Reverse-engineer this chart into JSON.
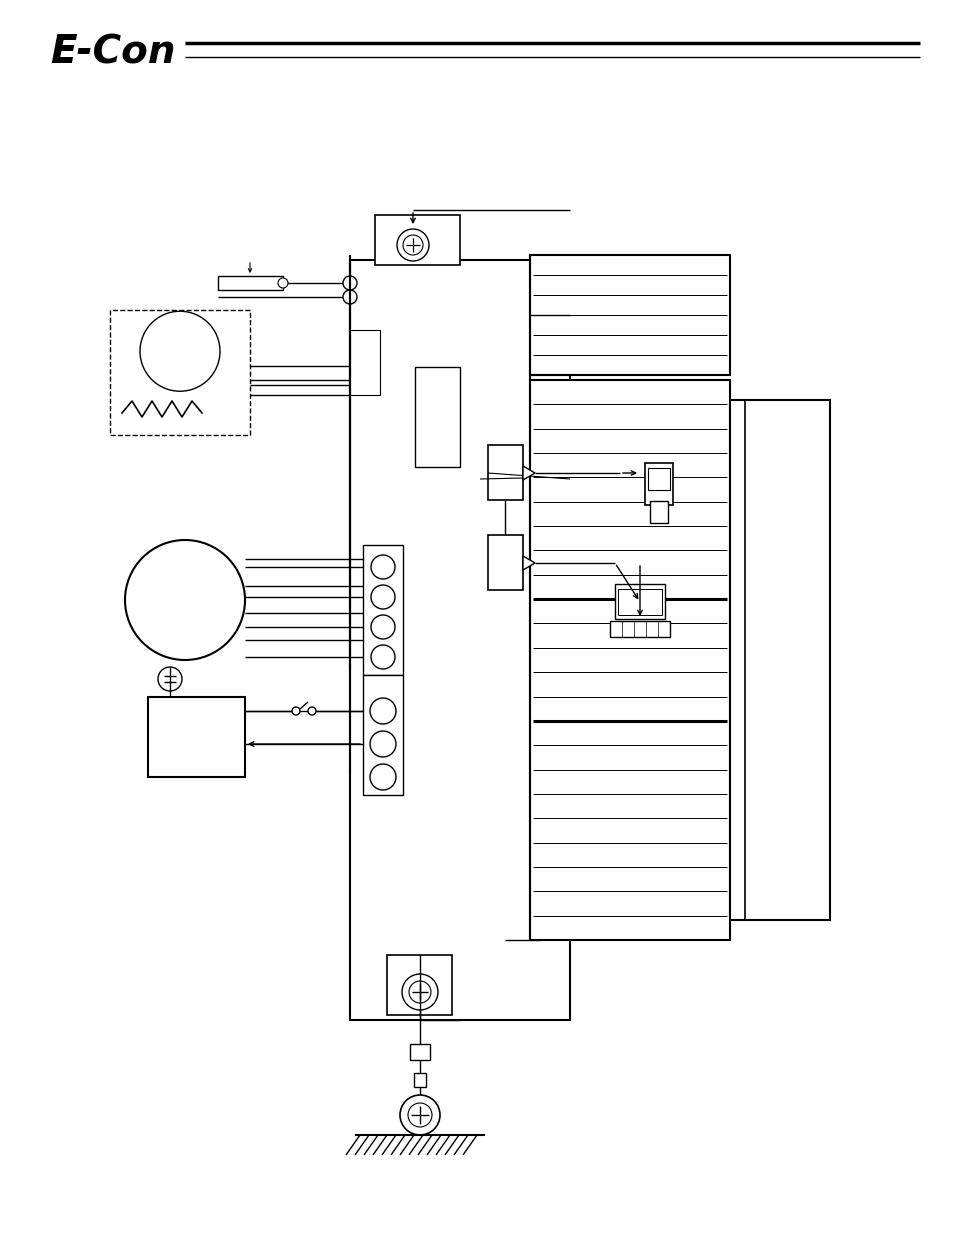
{
  "bg_color": "#ffffff",
  "line_color": "#000000",
  "fig_width": 9.54,
  "fig_height": 12.35,
  "dpi": 100
}
